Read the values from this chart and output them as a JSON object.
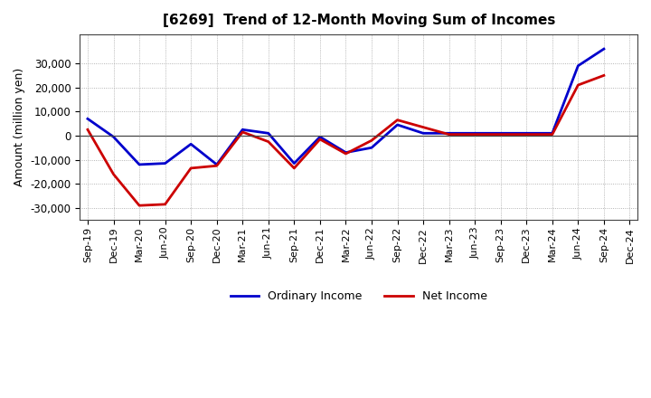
{
  "title": "[6269]  Trend of 12-Month Moving Sum of Incomes",
  "ylabel": "Amount (million yen)",
  "ylim": [
    -35000,
    42000
  ],
  "yticks": [
    -30000,
    -20000,
    -10000,
    0,
    10000,
    20000,
    30000
  ],
  "background_color": "#ffffff",
  "plot_bg_color": "#ffffff",
  "grid_color": "#888888",
  "legend_labels": [
    "Ordinary Income",
    "Net Income"
  ],
  "line_colors": [
    "#0000cc",
    "#cc0000"
  ],
  "x_labels": [
    "Sep-19",
    "Dec-19",
    "Mar-20",
    "Jun-20",
    "Sep-20",
    "Dec-20",
    "Mar-21",
    "Jun-21",
    "Sep-21",
    "Dec-21",
    "Mar-22",
    "Jun-22",
    "Sep-22",
    "Dec-22",
    "Mar-23",
    "Jun-23",
    "Sep-23",
    "Dec-23",
    "Mar-24",
    "Jun-24",
    "Sep-24",
    "Dec-24"
  ],
  "ordinary_income": [
    7000,
    -500,
    -12000,
    -11500,
    -3500,
    -12000,
    2500,
    1000,
    -11500,
    -500,
    -7000,
    -5000,
    4500,
    1000,
    1000,
    1000,
    1000,
    1000,
    1000,
    29000,
    36000,
    null
  ],
  "net_income": [
    2500,
    -16000,
    -29000,
    -28500,
    -13500,
    -12500,
    1500,
    -2500,
    -13500,
    -1500,
    -7500,
    -2000,
    6500,
    3500,
    500,
    500,
    500,
    500,
    500,
    21000,
    25000,
    null
  ]
}
